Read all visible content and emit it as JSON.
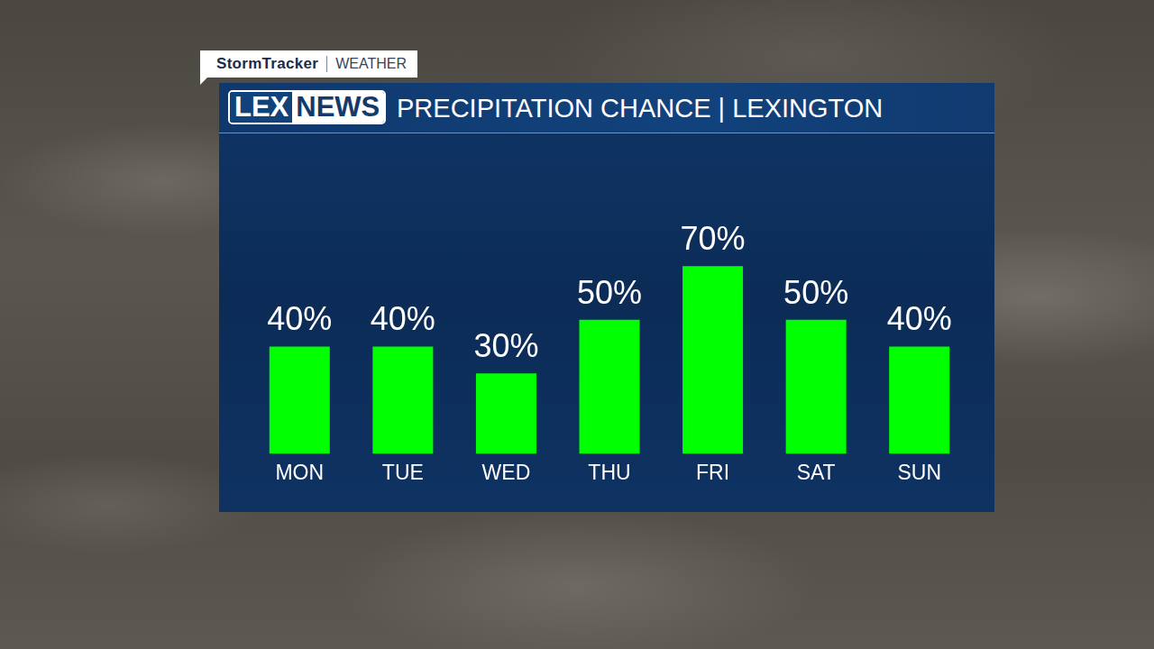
{
  "header": {
    "brand": "StormTracker",
    "section": "WEATHER",
    "logo": [
      "LEX",
      "NEWS"
    ]
  },
  "chart_data": {
    "type": "bar",
    "title": "PRECIPITATION CHANCE | LEXINGTON",
    "categories": [
      "MON",
      "TUE",
      "WED",
      "THU",
      "FRI",
      "SAT",
      "SUN"
    ],
    "values": [
      40,
      40,
      30,
      50,
      70,
      50,
      40
    ],
    "value_labels": [
      "40%",
      "40%",
      "30%",
      "50%",
      "70%",
      "50%",
      "40%"
    ],
    "color": "#00ff00",
    "ylim": [
      0,
      100
    ],
    "grid": false,
    "data_labels": true,
    "tick_labels": "x"
  }
}
